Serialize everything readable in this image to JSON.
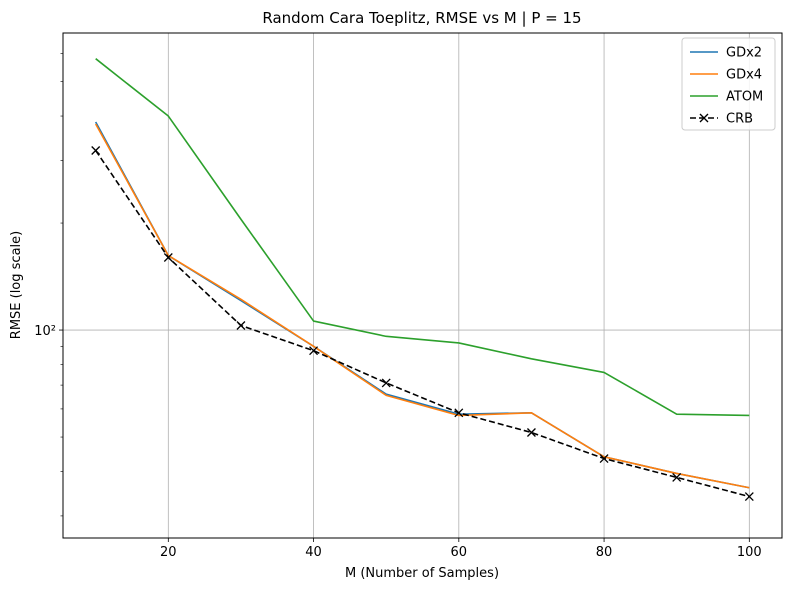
{
  "chart_data": {
    "type": "line",
    "title": "Random Cara Toeplitz, RMSE vs M | P = 15",
    "xlabel": "M (Number of Samples)",
    "ylabel": "RMSE (log scale)",
    "yscale": "log",
    "xlim": [
      5.5,
      104.5
    ],
    "ylim": [
      26,
      685
    ],
    "grid": true,
    "legend_position": "top-right",
    "x_ticks": [
      20,
      40,
      60,
      80,
      100
    ],
    "x_tick_labels": [
      "20",
      "40",
      "60",
      "80",
      "100"
    ],
    "y_major_tick": 100,
    "y_major_tick_label": "10²",
    "y_minor_ticks": [
      30,
      40,
      50,
      60,
      70,
      80,
      90,
      200,
      300,
      400,
      500,
      600
    ],
    "x": [
      10,
      20,
      30,
      40,
      50,
      60,
      70,
      80,
      90,
      100
    ],
    "series": [
      {
        "name": "GDx2",
        "color": "#1f77b4",
        "dashed": false,
        "marker": "none",
        "values": [
          385,
          162,
          121,
          90,
          66,
          58,
          58.5,
          44,
          39.5,
          36
        ]
      },
      {
        "name": "GDx4",
        "color": "#ff7f0e",
        "dashed": false,
        "marker": "none",
        "values": [
          380,
          162,
          122,
          90,
          65.5,
          57.5,
          58.5,
          44,
          39.5,
          36
        ]
      },
      {
        "name": "ATOM",
        "color": "#2ca02c",
        "dashed": false,
        "marker": "none",
        "values": [
          580,
          400,
          205,
          106,
          96,
          92,
          83,
          76,
          58,
          57.5
        ]
      },
      {
        "name": "CRB",
        "color": "#000000",
        "dashed": true,
        "marker": "x",
        "values": [
          320,
          160,
          103,
          87.5,
          71,
          58.5,
          51.5,
          43.5,
          38.5,
          34
        ]
      }
    ]
  }
}
